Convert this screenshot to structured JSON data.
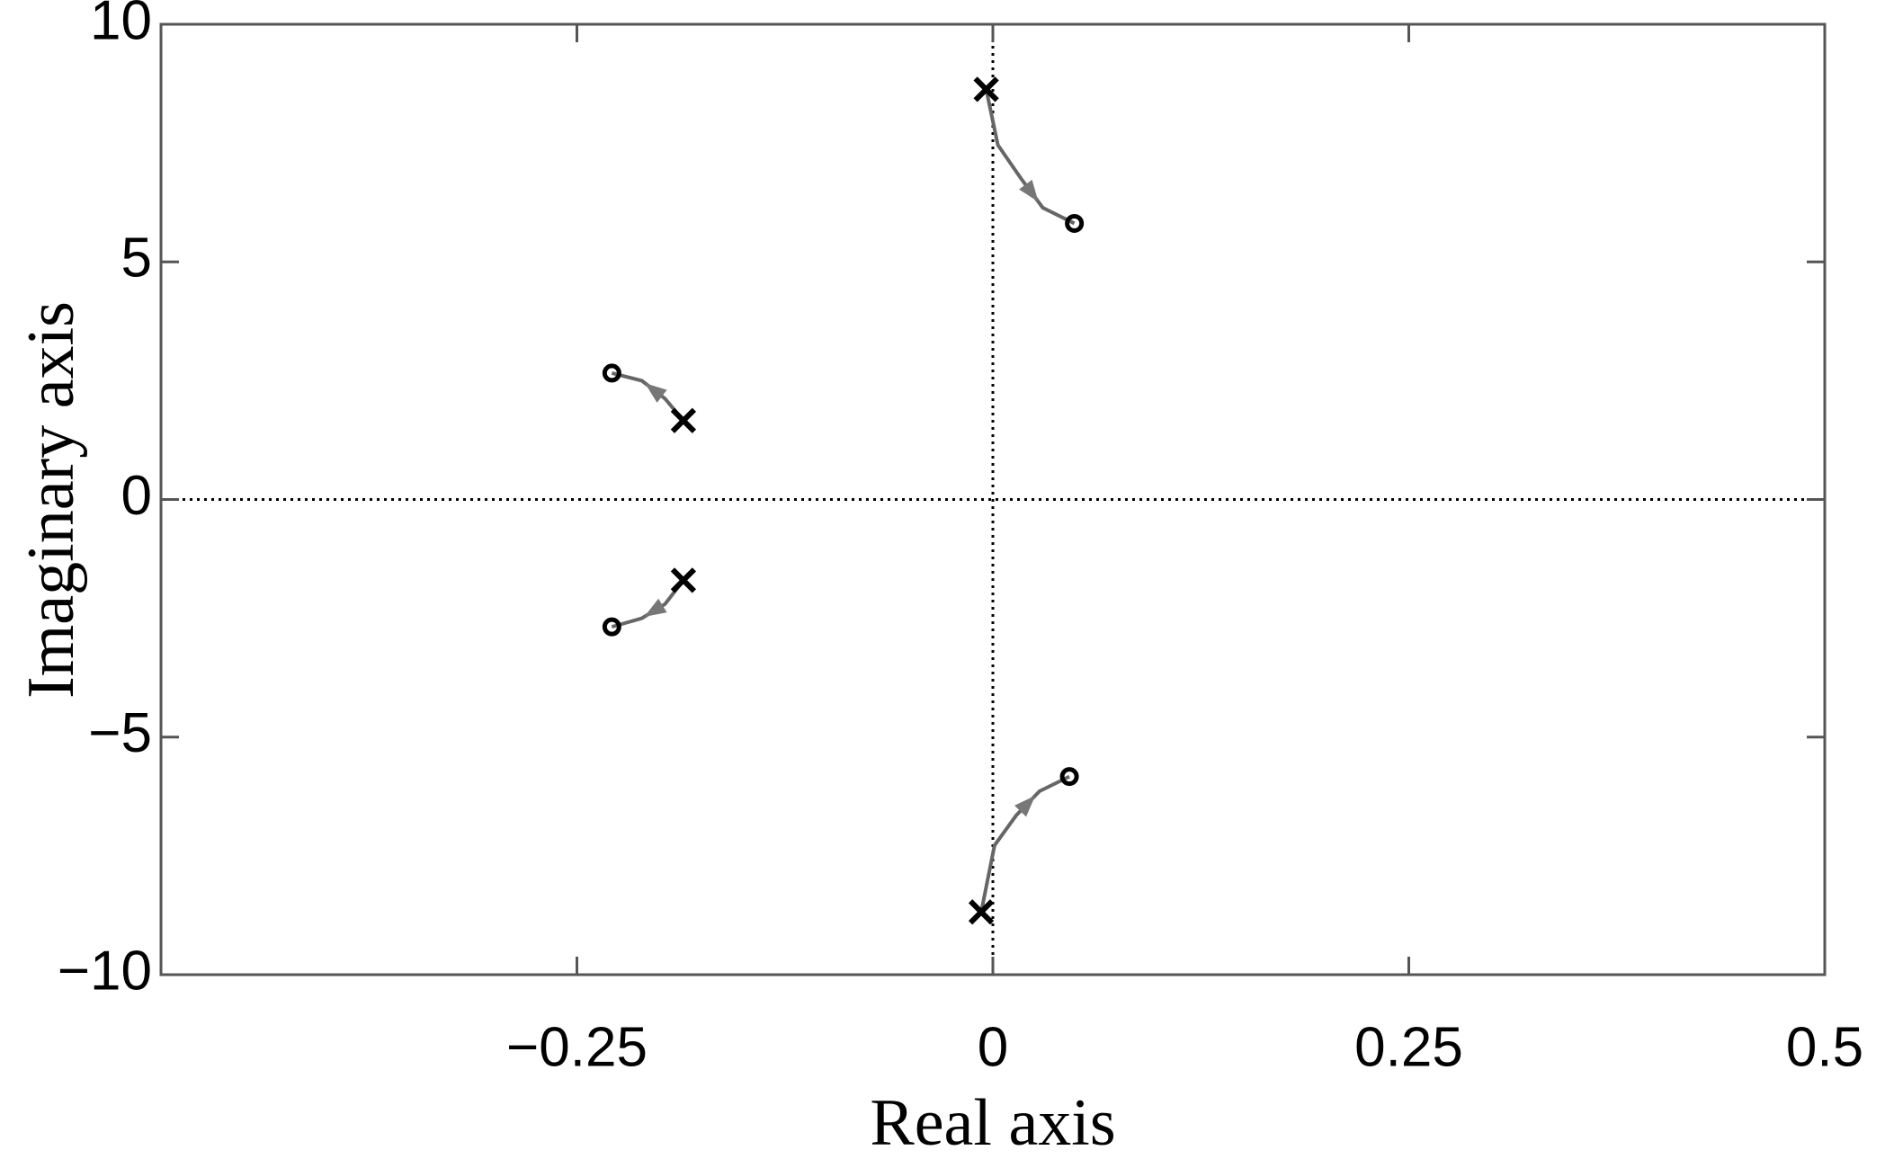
{
  "chart_data": {
    "type": "root-locus",
    "xlabel": "Real axis",
    "ylabel": "Imaginary axis",
    "xlim": [
      -0.5,
      0.5
    ],
    "ylim": [
      -10,
      10
    ],
    "xticks": [
      {
        "value": -0.25,
        "label": "−0.25"
      },
      0,
      0.25,
      0.5
    ],
    "yticks": [
      {
        "value": -10,
        "label": "−10"
      },
      {
        "value": -5,
        "label": "−5"
      },
      0,
      5,
      10
    ],
    "poles": {
      "color": "#000000",
      "x": [
        -0.186,
        -0.186,
        -0.004,
        -0.007
      ],
      "y": [
        1.66,
        -1.7,
        8.63,
        -8.68
      ]
    },
    "zeros": {
      "color": "#000000",
      "x": [
        -0.229,
        -0.229,
        0.049,
        0.046
      ],
      "y": [
        2.66,
        -2.68,
        5.81,
        -5.83
      ]
    },
    "loci": {
      "color": "#666666",
      "paths": [
        {
          "x": [
            -0.186,
            -0.197,
            -0.211,
            -0.229
          ],
          "y": [
            1.66,
            2.12,
            2.5,
            2.66
          ]
        },
        {
          "x": [
            -0.186,
            -0.197,
            -0.211,
            -0.229
          ],
          "y": [
            -1.7,
            -2.2,
            -2.5,
            -2.68
          ]
        },
        {
          "x": [
            -0.004,
            0.003,
            0.017,
            0.03,
            0.049
          ],
          "y": [
            8.63,
            7.46,
            6.75,
            6.14,
            5.81
          ]
        },
        {
          "x": [
            -0.007,
            0.001,
            0.014,
            0.028,
            0.046
          ],
          "y": [
            -8.68,
            -7.28,
            -6.65,
            -6.14,
            -5.83
          ]
        }
      ]
    }
  }
}
